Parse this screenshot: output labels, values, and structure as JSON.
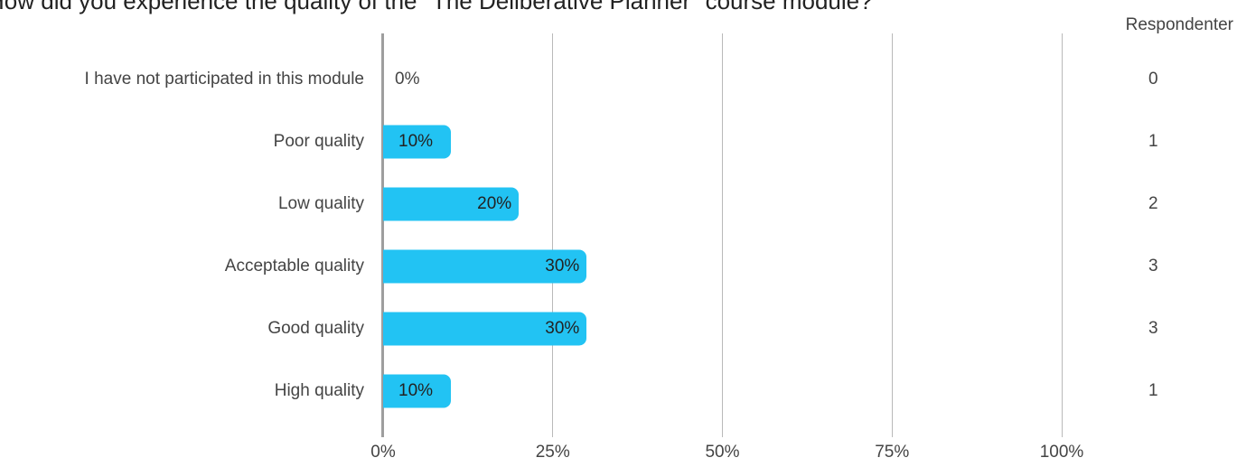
{
  "chart_data": {
    "type": "bar",
    "orientation": "horizontal",
    "title": "How did you experience the quality of the \"The Deliberative Planner\" course module?",
    "count_header": "Respondenter",
    "categories": [
      "I have not participated in this module",
      "Poor quality",
      "Low quality",
      "Acceptable quality",
      "Good quality",
      "High quality"
    ],
    "values": [
      0,
      10,
      20,
      30,
      30,
      10
    ],
    "value_labels": [
      "0%",
      "10%",
      "20%",
      "30%",
      "30%",
      "10%"
    ],
    "counts": [
      "0",
      "1",
      "2",
      "3",
      "3",
      "1"
    ],
    "xlim": [
      0,
      100
    ],
    "ticks": [
      "0%",
      "25%",
      "50%",
      "75%",
      "100%"
    ],
    "grid": true,
    "bar_color": "#22c3f3"
  }
}
